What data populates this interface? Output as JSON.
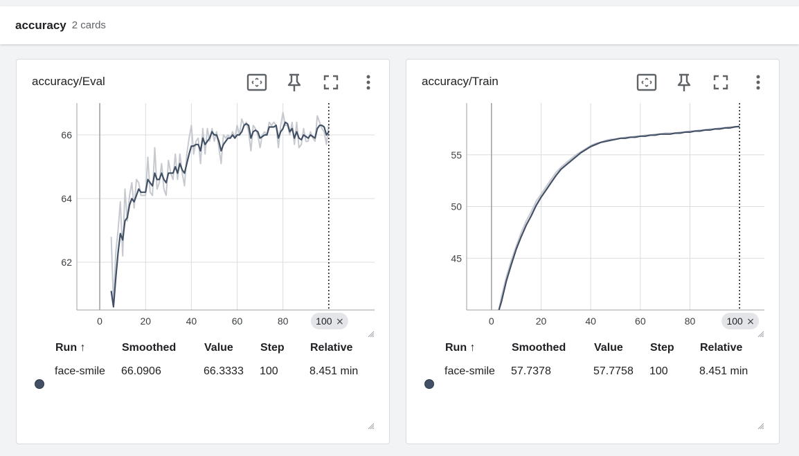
{
  "group": {
    "title": "accuracy",
    "count": "2 cards"
  },
  "colors": {
    "series": "#425066",
    "raw": "#c6c9cf",
    "grid": "#dadce0",
    "axis": "#9aa0a6"
  },
  "table": {
    "headers": {
      "run": "Run ↑",
      "smoothed": "Smoothed",
      "value": "Value",
      "step": "Step",
      "relative": "Relative"
    }
  },
  "cards": [
    {
      "title": "accuracy/Eval",
      "row": {
        "run": "face-smile",
        "smoothed": "66.0906",
        "value": "66.3333",
        "step": "100",
        "relative": "8.451 min"
      }
    },
    {
      "title": "accuracy/Train",
      "row": {
        "run": "face-smile",
        "smoothed": "57.7378",
        "value": "57.7758",
        "step": "100",
        "relative": "8.451 min"
      }
    }
  ],
  "icons": [
    "fit-domain-icon",
    "pin-icon",
    "fullscreen-icon",
    "more-vert-icon",
    "resize-handle-icon"
  ],
  "chart_data": [
    {
      "type": "line",
      "title": "accuracy/Eval",
      "xlabel": "",
      "ylabel": "",
      "xlim": [
        -10,
        120
      ],
      "ylim": [
        60.5,
        67
      ],
      "x_ticks": [
        0,
        20,
        40,
        60,
        80
      ],
      "y_ticks": [
        62,
        64,
        66
      ],
      "cursor_step": 100,
      "cursor_label": "100",
      "grid": true,
      "series": [
        {
          "name": "face-smile",
          "x": [
            5,
            6,
            7,
            8,
            9,
            10,
            11,
            12,
            13,
            14,
            15,
            16,
            17,
            18,
            19,
            20,
            21,
            22,
            23,
            24,
            25,
            26,
            27,
            28,
            29,
            30,
            31,
            32,
            33,
            34,
            35,
            36,
            37,
            38,
            39,
            40,
            41,
            42,
            43,
            44,
            45,
            46,
            47,
            48,
            49,
            50,
            51,
            52,
            53,
            54,
            55,
            56,
            57,
            58,
            59,
            60,
            61,
            62,
            63,
            64,
            65,
            66,
            67,
            68,
            69,
            70,
            71,
            72,
            73,
            74,
            75,
            76,
            77,
            78,
            79,
            80,
            81,
            82,
            83,
            84,
            85,
            86,
            87,
            88,
            89,
            90,
            91,
            92,
            93,
            94,
            95,
            96,
            97,
            98,
            99,
            100
          ],
          "smoothed": [
            61.1,
            60.6,
            61.5,
            62.3,
            62.9,
            62.7,
            63.3,
            63.4,
            63.8,
            64.0,
            63.9,
            64.1,
            64.3,
            64.2,
            64.2,
            64.2,
            64.6,
            64.5,
            64.4,
            64.8,
            64.6,
            64.6,
            64.8,
            64.6,
            64.5,
            64.8,
            64.8,
            64.8,
            65.0,
            64.8,
            65.1,
            64.9,
            64.8,
            65.1,
            65.4,
            65.65,
            65.65,
            65.7,
            65.7,
            65.5,
            65.9,
            65.7,
            65.8,
            65.9,
            66.1,
            66.0,
            66.0,
            65.8,
            65.5,
            65.7,
            65.8,
            65.9,
            65.9,
            66.0,
            65.9,
            66.0,
            66.0,
            66.1,
            66.3,
            66.35,
            66.3,
            65.9,
            66.1,
            66.15,
            66.1,
            65.9,
            65.95,
            66.0,
            66.0,
            66.25,
            66.25,
            66.25,
            66.3,
            65.9,
            66.1,
            66.2,
            66.4,
            66.35,
            66.1,
            66.2,
            65.9,
            66.1,
            65.9,
            65.85,
            66.0,
            65.95,
            65.9,
            66.0,
            65.95,
            65.9,
            66.2,
            66.3,
            66.3,
            66.25,
            66.0,
            66.09
          ],
          "raw": [
            62.8,
            60.7,
            62.3,
            63.0,
            63.9,
            62.2,
            64.3,
            63.3,
            64.1,
            64.5,
            63.7,
            64.6,
            64.5,
            64.1,
            64.1,
            64.1,
            65.3,
            64.2,
            64.1,
            65.6,
            64.3,
            64.5,
            65.1,
            64.3,
            64.1,
            65.2,
            64.8,
            64.6,
            65.4,
            64.6,
            65.4,
            64.8,
            64.4,
            65.4,
            65.9,
            66.3,
            65.4,
            65.8,
            65.9,
            65.1,
            66.2,
            65.4,
            66.2,
            65.8,
            66.2,
            65.8,
            66.1,
            65.6,
            65.1,
            66.0,
            65.9,
            66.0,
            65.9,
            66.1,
            65.9,
            66.3,
            66.0,
            66.5,
            66.3,
            66.4,
            66.1,
            65.5,
            66.3,
            66.2,
            66.0,
            65.6,
            66.0,
            66.1,
            66.0,
            66.4,
            66.3,
            66.4,
            66.3,
            65.6,
            66.3,
            66.7,
            66.3,
            66.3,
            66.0,
            66.4,
            65.7,
            66.4,
            65.6,
            65.7,
            66.2,
            65.8,
            65.8,
            66.1,
            65.9,
            65.8,
            66.6,
            66.4,
            66.2,
            66.1,
            65.7,
            66.33
          ]
        }
      ]
    },
    {
      "type": "line",
      "title": "accuracy/Train",
      "xlabel": "",
      "ylabel": "",
      "xlim": [
        -10,
        110
      ],
      "ylim": [
        40,
        60
      ],
      "x_ticks": [
        0,
        20,
        40,
        60,
        80
      ],
      "y_ticks": [
        45,
        50,
        55
      ],
      "cursor_step": 100,
      "cursor_label": "100",
      "grid": true,
      "series": [
        {
          "name": "face-smile",
          "x": [
            3,
            4,
            6,
            8,
            10,
            12,
            14,
            16,
            18,
            20,
            22,
            24,
            26,
            28,
            30,
            32,
            34,
            36,
            38,
            40,
            42,
            44,
            46,
            48,
            50,
            52,
            54,
            56,
            58,
            60,
            62,
            64,
            66,
            68,
            70,
            72,
            74,
            76,
            78,
            80,
            82,
            84,
            86,
            88,
            90,
            92,
            94,
            96,
            98,
            100
          ],
          "smoothed": [
            40.0,
            40.8,
            42.8,
            44.4,
            45.9,
            47.1,
            48.2,
            49.1,
            50.1,
            50.9,
            51.6,
            52.3,
            53.0,
            53.6,
            54.0,
            54.4,
            54.8,
            55.2,
            55.5,
            55.8,
            56.0,
            56.2,
            56.3,
            56.4,
            56.5,
            56.6,
            56.6,
            56.7,
            56.7,
            56.8,
            56.8,
            56.9,
            56.9,
            57.0,
            57.0,
            57.0,
            57.1,
            57.1,
            57.2,
            57.2,
            57.3,
            57.3,
            57.4,
            57.4,
            57.5,
            57.5,
            57.6,
            57.6,
            57.7,
            57.74
          ],
          "raw": [
            40.0,
            41.3,
            43.2,
            44.8,
            46.2,
            47.5,
            48.6,
            49.5,
            50.5,
            51.2,
            51.9,
            52.6,
            53.3,
            53.8,
            54.2,
            54.6,
            55.0,
            55.3,
            55.6,
            55.9,
            56.1,
            56.2,
            56.4,
            56.5,
            56.5,
            56.6,
            56.7,
            56.7,
            56.8,
            56.8,
            56.9,
            56.9,
            57.0,
            57.0,
            57.1,
            57.1,
            57.1,
            57.2,
            57.2,
            57.3,
            57.3,
            57.4,
            57.4,
            57.5,
            57.5,
            57.6,
            57.6,
            57.7,
            57.7,
            57.78
          ]
        }
      ]
    }
  ]
}
